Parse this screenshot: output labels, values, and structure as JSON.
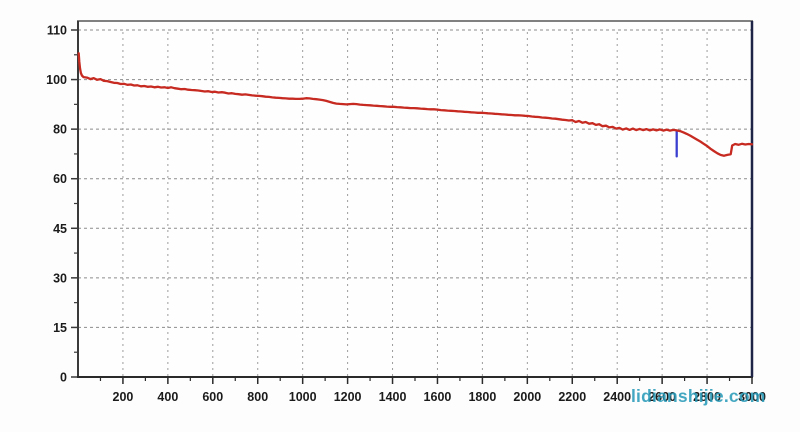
{
  "watermark": {
    "text": "lidianshijie.com",
    "color": "#2b9cba"
  },
  "colors": {
    "curve_red": "#c62a21",
    "glitch_blue": "#3a3fd0",
    "grid_gray": "#8c8c8c",
    "border_top": "#808080",
    "border_left": "#3a3a3a",
    "border_bottom": "#2a2a2a",
    "border_right": "#1e2446",
    "tick_label": "#1b1b1b",
    "plot_bg": "#fefefe"
  },
  "chart_data": {
    "type": "line",
    "title": "",
    "xlabel": "",
    "ylabel": "",
    "grid": true,
    "legend": "none",
    "xlim": [
      0,
      3000
    ],
    "x_major_ticks": [
      200,
      400,
      600,
      800,
      1000,
      1200,
      1400,
      1600,
      1800,
      2000,
      2200,
      2400,
      2600,
      2800,
      3000
    ],
    "x_minor_tick_step": 100,
    "y_tick_labels": [
      "110",
      "100",
      "80",
      "60",
      "45",
      "30",
      "15",
      "0"
    ],
    "y_tick_values": [
      110,
      100,
      80,
      60,
      45,
      30,
      15,
      0
    ],
    "y_axis_note": "tick labels equally spaced on axis (non-uniform value steps), top of box above 110",
    "series": [
      {
        "name": "capacity-curve",
        "color": "#c62a21",
        "points": [
          [
            3,
            105.3
          ],
          [
            6,
            103.6
          ],
          [
            9,
            102.3
          ],
          [
            13,
            101.3
          ],
          [
            18,
            100.8
          ],
          [
            25,
            100.5
          ],
          [
            40,
            100.4
          ],
          [
            55,
            100.1
          ],
          [
            70,
            100.3
          ],
          [
            85,
            99.9
          ],
          [
            100,
            100.1
          ],
          [
            115,
            99.5
          ],
          [
            130,
            99.4
          ],
          [
            145,
            99.0
          ],
          [
            160,
            98.7
          ],
          [
            175,
            98.6
          ],
          [
            190,
            98.2
          ],
          [
            205,
            98.3
          ],
          [
            220,
            97.9
          ],
          [
            235,
            98.0
          ],
          [
            250,
            97.6
          ],
          [
            265,
            97.7
          ],
          [
            280,
            97.3
          ],
          [
            295,
            97.4
          ],
          [
            310,
            97.1
          ],
          [
            325,
            97.2
          ],
          [
            340,
            96.9
          ],
          [
            355,
            97.1
          ],
          [
            370,
            96.8
          ],
          [
            385,
            96.9
          ],
          [
            400,
            96.6
          ],
          [
            415,
            96.9
          ],
          [
            430,
            96.5
          ],
          [
            445,
            96.3
          ],
          [
            460,
            96.1
          ],
          [
            475,
            96.2
          ],
          [
            490,
            95.9
          ],
          [
            505,
            95.8
          ],
          [
            520,
            95.7
          ],
          [
            535,
            95.6
          ],
          [
            550,
            95.4
          ],
          [
            565,
            95.2
          ],
          [
            580,
            95.3
          ],
          [
            595,
            95.0
          ],
          [
            610,
            95.1
          ],
          [
            625,
            94.8
          ],
          [
            640,
            94.9
          ],
          [
            655,
            94.7
          ],
          [
            670,
            94.4
          ],
          [
            685,
            94.5
          ],
          [
            700,
            94.2
          ],
          [
            715,
            94.1
          ],
          [
            730,
            93.9
          ],
          [
            745,
            94.0
          ],
          [
            760,
            93.8
          ],
          [
            775,
            93.6
          ],
          [
            790,
            93.5
          ],
          [
            805,
            93.4
          ],
          [
            820,
            93.3
          ],
          [
            835,
            93.1
          ],
          [
            850,
            93.0
          ],
          [
            865,
            92.8
          ],
          [
            880,
            92.7
          ],
          [
            895,
            92.6
          ],
          [
            910,
            92.5
          ],
          [
            925,
            92.4
          ],
          [
            940,
            92.3
          ],
          [
            955,
            92.3
          ],
          [
            970,
            92.2
          ],
          [
            985,
            92.2
          ],
          [
            1000,
            92.3
          ],
          [
            1015,
            92.5
          ],
          [
            1030,
            92.4
          ],
          [
            1045,
            92.2
          ],
          [
            1060,
            92.1
          ],
          [
            1075,
            91.9
          ],
          [
            1090,
            91.7
          ],
          [
            1105,
            91.4
          ],
          [
            1120,
            91.0
          ],
          [
            1135,
            90.6
          ],
          [
            1150,
            90.3
          ],
          [
            1165,
            90.2
          ],
          [
            1180,
            90.1
          ],
          [
            1195,
            90.0
          ],
          [
            1210,
            90.1
          ],
          [
            1225,
            90.2
          ],
          [
            1240,
            90.1
          ],
          [
            1255,
            89.9
          ],
          [
            1270,
            89.8
          ],
          [
            1285,
            89.7
          ],
          [
            1300,
            89.6
          ],
          [
            1315,
            89.5
          ],
          [
            1330,
            89.4
          ],
          [
            1345,
            89.3
          ],
          [
            1360,
            89.2
          ],
          [
            1375,
            89.1
          ],
          [
            1390,
            89.0
          ],
          [
            1405,
            89.0
          ],
          [
            1420,
            88.9
          ],
          [
            1435,
            88.8
          ],
          [
            1450,
            88.7
          ],
          [
            1465,
            88.6
          ],
          [
            1480,
            88.5
          ],
          [
            1495,
            88.5
          ],
          [
            1510,
            88.4
          ],
          [
            1525,
            88.3
          ],
          [
            1540,
            88.2
          ],
          [
            1555,
            88.1
          ],
          [
            1570,
            88.0
          ],
          [
            1585,
            88.0
          ],
          [
            1600,
            87.9
          ],
          [
            1615,
            87.7
          ],
          [
            1630,
            87.6
          ],
          [
            1645,
            87.5
          ],
          [
            1660,
            87.4
          ],
          [
            1675,
            87.3
          ],
          [
            1690,
            87.2
          ],
          [
            1705,
            87.1
          ],
          [
            1720,
            87.0
          ],
          [
            1735,
            86.9
          ],
          [
            1750,
            86.8
          ],
          [
            1765,
            86.7
          ],
          [
            1780,
            86.6
          ],
          [
            1795,
            86.6
          ],
          [
            1810,
            86.5
          ],
          [
            1825,
            86.4
          ],
          [
            1840,
            86.3
          ],
          [
            1855,
            86.2
          ],
          [
            1870,
            86.1
          ],
          [
            1885,
            86.0
          ],
          [
            1900,
            85.9
          ],
          [
            1915,
            85.8
          ],
          [
            1930,
            85.7
          ],
          [
            1945,
            85.6
          ],
          [
            1960,
            85.6
          ],
          [
            1975,
            85.5
          ],
          [
            1990,
            85.4
          ],
          [
            2005,
            85.3
          ],
          [
            2020,
            85.1
          ],
          [
            2035,
            85.0
          ],
          [
            2050,
            84.9
          ],
          [
            2065,
            84.7
          ],
          [
            2080,
            84.6
          ],
          [
            2095,
            84.5
          ],
          [
            2110,
            84.3
          ],
          [
            2125,
            84.2
          ],
          [
            2140,
            84.0
          ],
          [
            2155,
            83.8
          ],
          [
            2170,
            83.7
          ],
          [
            2185,
            83.5
          ],
          [
            2200,
            83.6
          ],
          [
            2215,
            82.9
          ],
          [
            2230,
            83.3
          ],
          [
            2245,
            82.6
          ],
          [
            2260,
            82.9
          ],
          [
            2275,
            82.2
          ],
          [
            2290,
            82.4
          ],
          [
            2305,
            81.7
          ],
          [
            2320,
            82.0
          ],
          [
            2335,
            81.2
          ],
          [
            2350,
            81.4
          ],
          [
            2365,
            80.7
          ],
          [
            2380,
            80.9
          ],
          [
            2395,
            80.2
          ],
          [
            2410,
            80.5
          ],
          [
            2425,
            79.8
          ],
          [
            2440,
            80.3
          ],
          [
            2455,
            79.7
          ],
          [
            2470,
            80.2
          ],
          [
            2485,
            79.6
          ],
          [
            2500,
            80.1
          ],
          [
            2515,
            79.6
          ],
          [
            2530,
            80.0
          ],
          [
            2545,
            79.5
          ],
          [
            2560,
            79.9
          ],
          [
            2575,
            79.5
          ],
          [
            2590,
            79.9
          ],
          [
            2605,
            79.4
          ],
          [
            2620,
            79.8
          ],
          [
            2635,
            79.4
          ],
          [
            2650,
            79.7
          ],
          [
            2665,
            79.5
          ],
          [
            2680,
            79.2
          ],
          [
            2695,
            78.7
          ],
          [
            2710,
            78.1
          ],
          [
            2725,
            77.4
          ],
          [
            2740,
            76.6
          ],
          [
            2755,
            75.8
          ],
          [
            2770,
            75.0
          ],
          [
            2785,
            74.1
          ],
          [
            2800,
            73.2
          ],
          [
            2815,
            72.1
          ],
          [
            2830,
            71.2
          ],
          [
            2845,
            70.3
          ],
          [
            2860,
            69.6
          ],
          [
            2875,
            69.3
          ],
          [
            2890,
            69.6
          ],
          [
            2905,
            69.9
          ],
          [
            2912,
            73.4
          ],
          [
            2925,
            74.0
          ],
          [
            2940,
            73.7
          ],
          [
            2955,
            74.1
          ],
          [
            2970,
            73.8
          ],
          [
            2985,
            74.0
          ],
          [
            3000,
            73.9
          ]
        ]
      },
      {
        "name": "glitch-spike",
        "color": "#3a3fd0",
        "points": [
          [
            2665,
            79.4
          ],
          [
            2665,
            69.0
          ]
        ]
      }
    ]
  }
}
